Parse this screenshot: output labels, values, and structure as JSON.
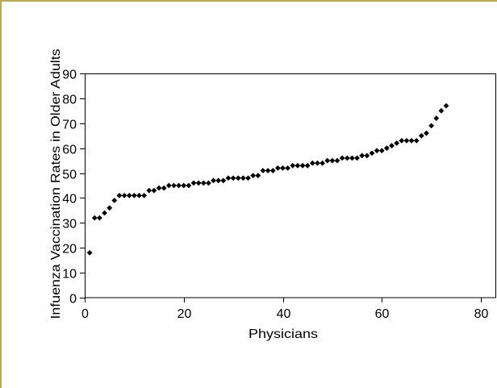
{
  "chart_data": {
    "type": "scatter",
    "xlabel": "Physicians",
    "ylabel": "Infuenza Vaccination Rates in Older Adults",
    "xlim": [
      0,
      80
    ],
    "ylim": [
      0,
      90
    ],
    "xticks": [
      0,
      20,
      40,
      60,
      80
    ],
    "yticks": [
      0,
      10,
      20,
      30,
      40,
      50,
      60,
      70,
      80,
      90
    ],
    "grid": false,
    "series": [
      {
        "x": [
          1,
          2,
          3,
          4,
          5,
          6,
          7,
          8,
          9,
          10,
          11,
          12,
          13,
          14,
          15,
          16,
          17,
          18,
          19,
          20,
          21,
          22,
          23,
          24,
          25,
          26,
          27,
          28,
          29,
          30,
          31,
          32,
          33,
          34,
          35,
          36,
          37,
          38,
          39,
          40,
          41,
          42,
          43,
          44,
          45,
          46,
          47,
          48,
          49,
          50,
          51,
          52,
          53,
          54,
          55,
          56,
          57,
          58,
          59,
          60,
          61,
          62,
          63,
          64,
          65,
          66,
          67,
          68,
          69,
          70,
          71,
          72,
          73
        ],
        "y": [
          18,
          32,
          32,
          34,
          36,
          39,
          41,
          41,
          41,
          41,
          41,
          41,
          43,
          43,
          44,
          44,
          45,
          45,
          45,
          45,
          45,
          46,
          46,
          46,
          46,
          47,
          47,
          47,
          48,
          48,
          48,
          48,
          48,
          49,
          49,
          51,
          51,
          51,
          52,
          52,
          52,
          53,
          53,
          53,
          53,
          54,
          54,
          54,
          55,
          55,
          55,
          56,
          56,
          56,
          56,
          57,
          57,
          58,
          59,
          59,
          60,
          61,
          62,
          63,
          63,
          63,
          63,
          65,
          66,
          69,
          72,
          75,
          77
        ]
      }
    ]
  },
  "colors": {
    "frame": "#b8aa52",
    "axis": "#000000",
    "marker": "#000000",
    "background": "#ffffff"
  }
}
